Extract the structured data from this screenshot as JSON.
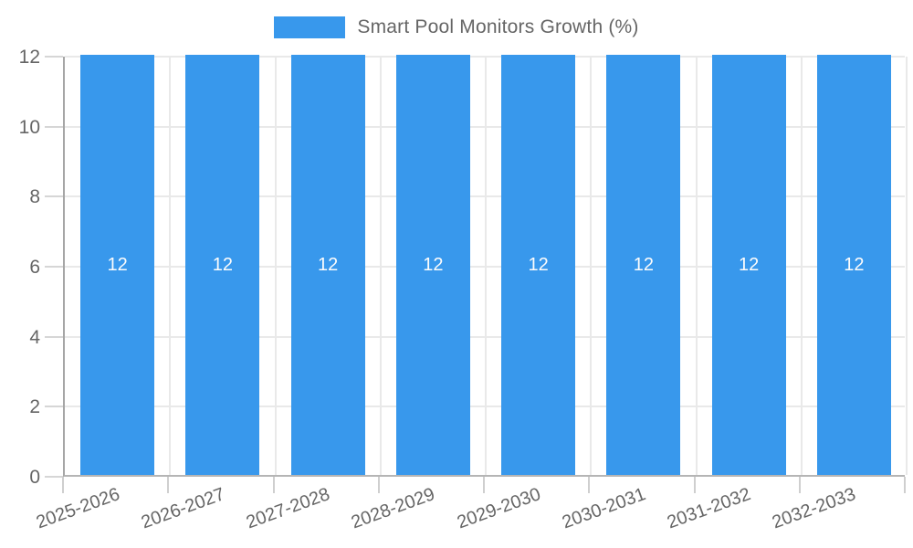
{
  "legend": {
    "label": "Smart Pool Monitors Growth (%)"
  },
  "chart_data": {
    "type": "bar",
    "title": "Smart Pool Monitors Growth (%)",
    "categories": [
      "2025-2026",
      "2026-2027",
      "2027-2028",
      "2028-2029",
      "2029-2030",
      "2030-2031",
      "2031-2032",
      "2032-2033"
    ],
    "values": [
      12,
      12,
      12,
      12,
      12,
      12,
      12,
      12
    ],
    "bar_labels": [
      "12",
      "12",
      "12",
      "12",
      "12",
      "12",
      "12",
      "12"
    ],
    "xlabel": "",
    "ylabel": "",
    "ylim": [
      0,
      12
    ],
    "yticks": [
      0,
      2,
      4,
      6,
      8,
      10,
      12
    ],
    "grid": true,
    "legend_position": "top",
    "colors": {
      "bar": "#3898EC",
      "bar_label": "#fcfcfc",
      "axis_text": "#666666",
      "gridline": "#e9e9e9",
      "axis_line": "#b0b0b0",
      "background": "#ffffff"
    }
  }
}
